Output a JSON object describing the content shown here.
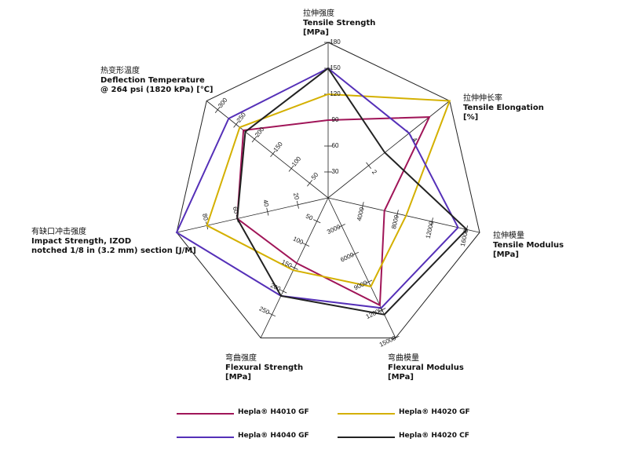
{
  "chart_data": {
    "type": "radar",
    "axes": [
      {
        "lines": [
          "拉伸强度",
          "Tensile Strength",
          "[MPa]"
        ],
        "ticks": [
          30,
          60,
          90,
          120,
          150,
          180
        ],
        "max": 180
      },
      {
        "lines": [
          "拉伸伸长率",
          "Tensile Elongation",
          "[%]"
        ],
        "ticks": [
          2,
          4
        ],
        "max": 6
      },
      {
        "lines": [
          "拉伸模量",
          "Tensile Modulus",
          "[MPa]"
        ],
        "ticks": [
          4000,
          8000,
          12000,
          16000
        ],
        "max": 17500
      },
      {
        "lines": [
          "弯曲模量",
          "Flexural Modulus",
          "[MPa]"
        ],
        "ticks": [
          3000,
          6000,
          9000,
          12000,
          15000
        ],
        "max": 15000
      },
      {
        "lines": [
          "弯曲强度",
          "Flexural Strength",
          "[MPa]"
        ],
        "ticks": [
          50,
          100,
          150,
          200,
          250
        ],
        "max": 300
      },
      {
        "lines": [
          "有缺口冲击强度",
          "Impact Strength, IZOD",
          "notched 1/8 in (3.2 mm) section [J/M]"
        ],
        "ticks": [
          20,
          40,
          60,
          80
        ],
        "max": 100
      },
      {
        "lines": [
          "热变形温度",
          "Deflection Temperature",
          "@ 264 psi (1820 kPa) [℃]"
        ],
        "ticks": [
          50,
          100,
          150,
          200,
          250,
          300
        ],
        "max": 330
      }
    ],
    "series": [
      {
        "name": "Hepla® H4010 GF",
        "color": "#a01558",
        "values": [
          90,
          5,
          6500,
          11500,
          140,
          60,
          230
        ]
      },
      {
        "name": "Hepla® H4020 GF",
        "color": "#d4b000",
        "values": [
          120,
          6,
          9000,
          9500,
          155,
          80,
          240
        ]
      },
      {
        "name": "Hepla® H4040 GF",
        "color": "#5530b8",
        "values": [
          150,
          4,
          15000,
          11800,
          210,
          100,
          270
        ]
      },
      {
        "name": "Hepla® H4020 CF",
        "color": "#222222",
        "values": [
          150,
          2.8,
          16000,
          12500,
          210,
          60,
          225
        ]
      }
    ]
  }
}
